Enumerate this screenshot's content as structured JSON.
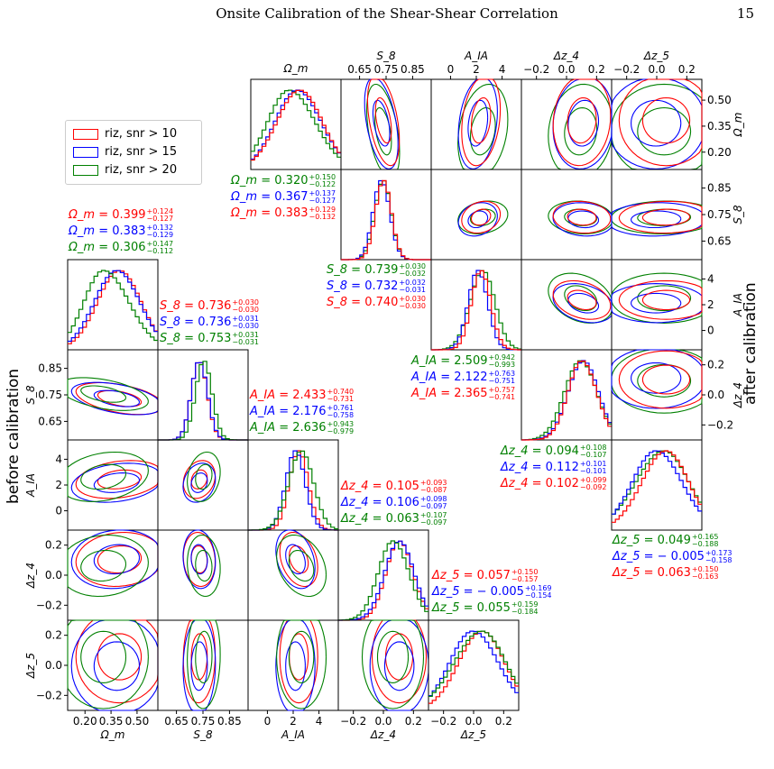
{
  "header": {
    "title": "Onsite Calibration of the Shear-Shear Correlation",
    "page_number": "15"
  },
  "side_labels": {
    "left": "before calibration",
    "right": "after calibration"
  },
  "colors": {
    "red": "#ff0000",
    "blue": "#0000ff",
    "green": "#008000"
  },
  "chart_data": [
    {
      "type": "scatter",
      "description_key": "lower triangle",
      "title": "",
      "side_label": "before calibration",
      "params": [
        "Ωm",
        "S8",
        "AIA",
        "Δz4",
        "Δz5"
      ],
      "axis_labels": [
        "Ω_m",
        "S_8",
        "A_IA",
        "Δz_4",
        "Δz_5"
      ],
      "ranges": [
        [
          0.1,
          0.62
        ],
        [
          0.58,
          0.92
        ],
        [
          -1.5,
          5.5
        ],
        [
          -0.3,
          0.3
        ],
        [
          -0.3,
          0.3
        ]
      ],
      "ticks": [
        [
          {
            "v": 0.2,
            "t": "0.20"
          },
          {
            "v": 0.35,
            "t": "0.35"
          },
          {
            "v": 0.5,
            "t": "0.50"
          }
        ],
        [
          {
            "v": 0.65,
            "t": "0.65"
          },
          {
            "v": 0.75,
            "t": "0.75"
          },
          {
            "v": 0.85,
            "t": "0.85"
          }
        ],
        [
          {
            "v": 0,
            "t": "0"
          },
          {
            "v": 2,
            "t": "2"
          },
          {
            "v": 4,
            "t": "4"
          }
        ],
        [
          {
            "v": -0.2,
            "t": "−0.2"
          },
          {
            "v": 0.0,
            "t": "0.0"
          },
          {
            "v": 0.2,
            "t": "0.2"
          }
        ],
        [
          {
            "v": -0.2,
            "t": "−0.2"
          },
          {
            "v": 0.0,
            "t": "0.0"
          },
          {
            "v": 0.2,
            "t": "0.2"
          }
        ]
      ],
      "series": [
        {
          "name": "riz, snr > 10",
          "color": "#ff0000",
          "mean": [
            0.399,
            0.736,
            2.433,
            0.105,
            0.057
          ],
          "plus": [
            0.124,
            0.03,
            0.74,
            0.093,
            0.15
          ],
          "minus": [
            0.127,
            0.03,
            0.731,
            0.087,
            0.157
          ]
        },
        {
          "name": "riz, snr > 15",
          "color": "#0000ff",
          "mean": [
            0.383,
            0.736,
            2.176,
            0.106,
            -0.005
          ],
          "plus": [
            0.132,
            0.031,
            0.761,
            0.098,
            0.169
          ],
          "minus": [
            0.129,
            0.03,
            0.758,
            0.097,
            0.154
          ]
        },
        {
          "name": "riz, snr > 20",
          "color": "#008000",
          "mean": [
            0.306,
            0.753,
            2.636,
            0.063,
            0.055
          ],
          "plus": [
            0.147,
            0.031,
            0.943,
            0.107,
            0.159
          ],
          "minus": [
            0.112,
            0.031,
            0.979,
            0.097,
            0.184
          ]
        }
      ],
      "stat_text": [
        {
          "param": "Ω_m",
          "rows": [
            {
              "color": "#ff0000",
              "value": "0.399",
              "plus": "+0.124",
              "minus": "−0.127"
            },
            {
              "color": "#0000ff",
              "value": "0.383",
              "plus": "+0.132",
              "minus": "−0.129"
            },
            {
              "color": "#008000",
              "value": "0.306",
              "plus": "+0.147",
              "minus": "−0.112"
            }
          ]
        },
        {
          "param": "S_8",
          "rows": [
            {
              "color": "#ff0000",
              "value": "0.736",
              "plus": "+0.030",
              "minus": "−0.030"
            },
            {
              "color": "#0000ff",
              "value": "0.736",
              "plus": "+0.031",
              "minus": "−0.030"
            },
            {
              "color": "#008000",
              "value": "0.753",
              "plus": "+0.031",
              "minus": "−0.031"
            }
          ]
        },
        {
          "param": "A_IA",
          "rows": [
            {
              "color": "#ff0000",
              "value": "2.433",
              "plus": "+0.740",
              "minus": "−0.731"
            },
            {
              "color": "#0000ff",
              "value": "2.176",
              "plus": "+0.761",
              "minus": "−0.758"
            },
            {
              "color": "#008000",
              "value": "2.636",
              "plus": "+0.943",
              "minus": "−0.979"
            }
          ]
        },
        {
          "param": "Δz_4",
          "rows": [
            {
              "color": "#ff0000",
              "value": "0.105",
              "plus": "+0.093",
              "minus": "−0.087"
            },
            {
              "color": "#0000ff",
              "value": "0.106",
              "plus": "+0.098",
              "minus": "−0.097"
            },
            {
              "color": "#008000",
              "value": "0.063",
              "plus": "+0.107",
              "minus": "−0.097"
            }
          ]
        },
        {
          "param": "Δz_5",
          "rows": [
            {
              "color": "#ff0000",
              "value": "0.057",
              "plus": "+0.150",
              "minus": "−0.157"
            },
            {
              "color": "#0000ff",
              "value": "− 0.005",
              "plus": "+0.169",
              "minus": "−0.154"
            },
            {
              "color": "#008000",
              "value": "0.055",
              "plus": "+0.159",
              "minus": "−0.184"
            }
          ]
        }
      ]
    },
    {
      "type": "scatter",
      "description_key": "upper triangle",
      "title": "",
      "side_label": "after calibration",
      "params": [
        "Ωm",
        "S8",
        "AIA",
        "Δz4",
        "Δz5"
      ],
      "axis_labels": [
        "Ω_m",
        "S_8",
        "A_IA",
        "Δz_4",
        "Δz_5"
      ],
      "series": [
        {
          "name": "riz, snr > 20",
          "color": "#008000",
          "mean": [
            0.32,
            0.739,
            2.509,
            0.094,
            0.049
          ],
          "plus": [
            0.15,
            0.03,
            0.942,
            0.108,
            0.165
          ],
          "minus": [
            0.122,
            0.032,
            0.993,
            0.107,
            0.188
          ]
        },
        {
          "name": "riz, snr > 15",
          "color": "#0000ff",
          "mean": [
            0.367,
            0.732,
            2.122,
            0.112,
            -0.005
          ],
          "plus": [
            0.137,
            0.032,
            0.763,
            0.101,
            0.173
          ],
          "minus": [
            0.127,
            0.031,
            0.751,
            0.101,
            0.158
          ]
        },
        {
          "name": "riz, snr > 10",
          "color": "#ff0000",
          "mean": [
            0.383,
            0.74,
            2.365,
            0.102,
            0.063
          ],
          "plus": [
            0.129,
            0.03,
            0.757,
            0.099,
            0.15
          ],
          "minus": [
            0.132,
            0.03,
            0.741,
            0.092,
            0.163
          ]
        }
      ],
      "stat_text": [
        {
          "param": "Ω_m",
          "rows": [
            {
              "color": "#008000",
              "value": "0.320",
              "plus": "+0.150",
              "minus": "−0.122"
            },
            {
              "color": "#0000ff",
              "value": "0.367",
              "plus": "+0.137",
              "minus": "−0.127"
            },
            {
              "color": "#ff0000",
              "value": "0.383",
              "plus": "+0.129",
              "minus": "−0.132"
            }
          ]
        },
        {
          "param": "S_8",
          "rows": [
            {
              "color": "#008000",
              "value": "0.739",
              "plus": "+0.030",
              "minus": "−0.032"
            },
            {
              "color": "#0000ff",
              "value": "0.732",
              "plus": "+0.032",
              "minus": "−0.031"
            },
            {
              "color": "#ff0000",
              "value": "0.740",
              "plus": "+0.030",
              "minus": "−0.030"
            }
          ]
        },
        {
          "param": "A_IA",
          "rows": [
            {
              "color": "#008000",
              "value": "2.509",
              "plus": "+0.942",
              "minus": "−0.993"
            },
            {
              "color": "#0000ff",
              "value": "2.122",
              "plus": "+0.763",
              "minus": "−0.751"
            },
            {
              "color": "#ff0000",
              "value": "2.365",
              "plus": "+0.757",
              "minus": "−0.741"
            }
          ]
        },
        {
          "param": "Δz_4",
          "rows": [
            {
              "color": "#008000",
              "value": "0.094",
              "plus": "+0.108",
              "minus": "−0.107"
            },
            {
              "color": "#0000ff",
              "value": "0.112",
              "plus": "+0.101",
              "minus": "−0.101"
            },
            {
              "color": "#ff0000",
              "value": "0.102",
              "plus": "+0.099",
              "minus": "−0.092"
            }
          ]
        },
        {
          "param": "Δz_5",
          "rows": [
            {
              "color": "#008000",
              "value": "0.049",
              "plus": "+0.165",
              "minus": "−0.188"
            },
            {
              "color": "#0000ff",
              "value": "− 0.005",
              "plus": "+0.173",
              "minus": "−0.158"
            },
            {
              "color": "#ff0000",
              "value": "0.063",
              "plus": "+0.150",
              "minus": "−0.163"
            }
          ]
        }
      ]
    }
  ],
  "legend": {
    "items": [
      {
        "label": "riz, snr > 10",
        "color": "#ff0000"
      },
      {
        "label": "riz, snr > 15",
        "color": "#0000ff"
      },
      {
        "label": "riz, snr > 20",
        "color": "#008000"
      }
    ]
  }
}
